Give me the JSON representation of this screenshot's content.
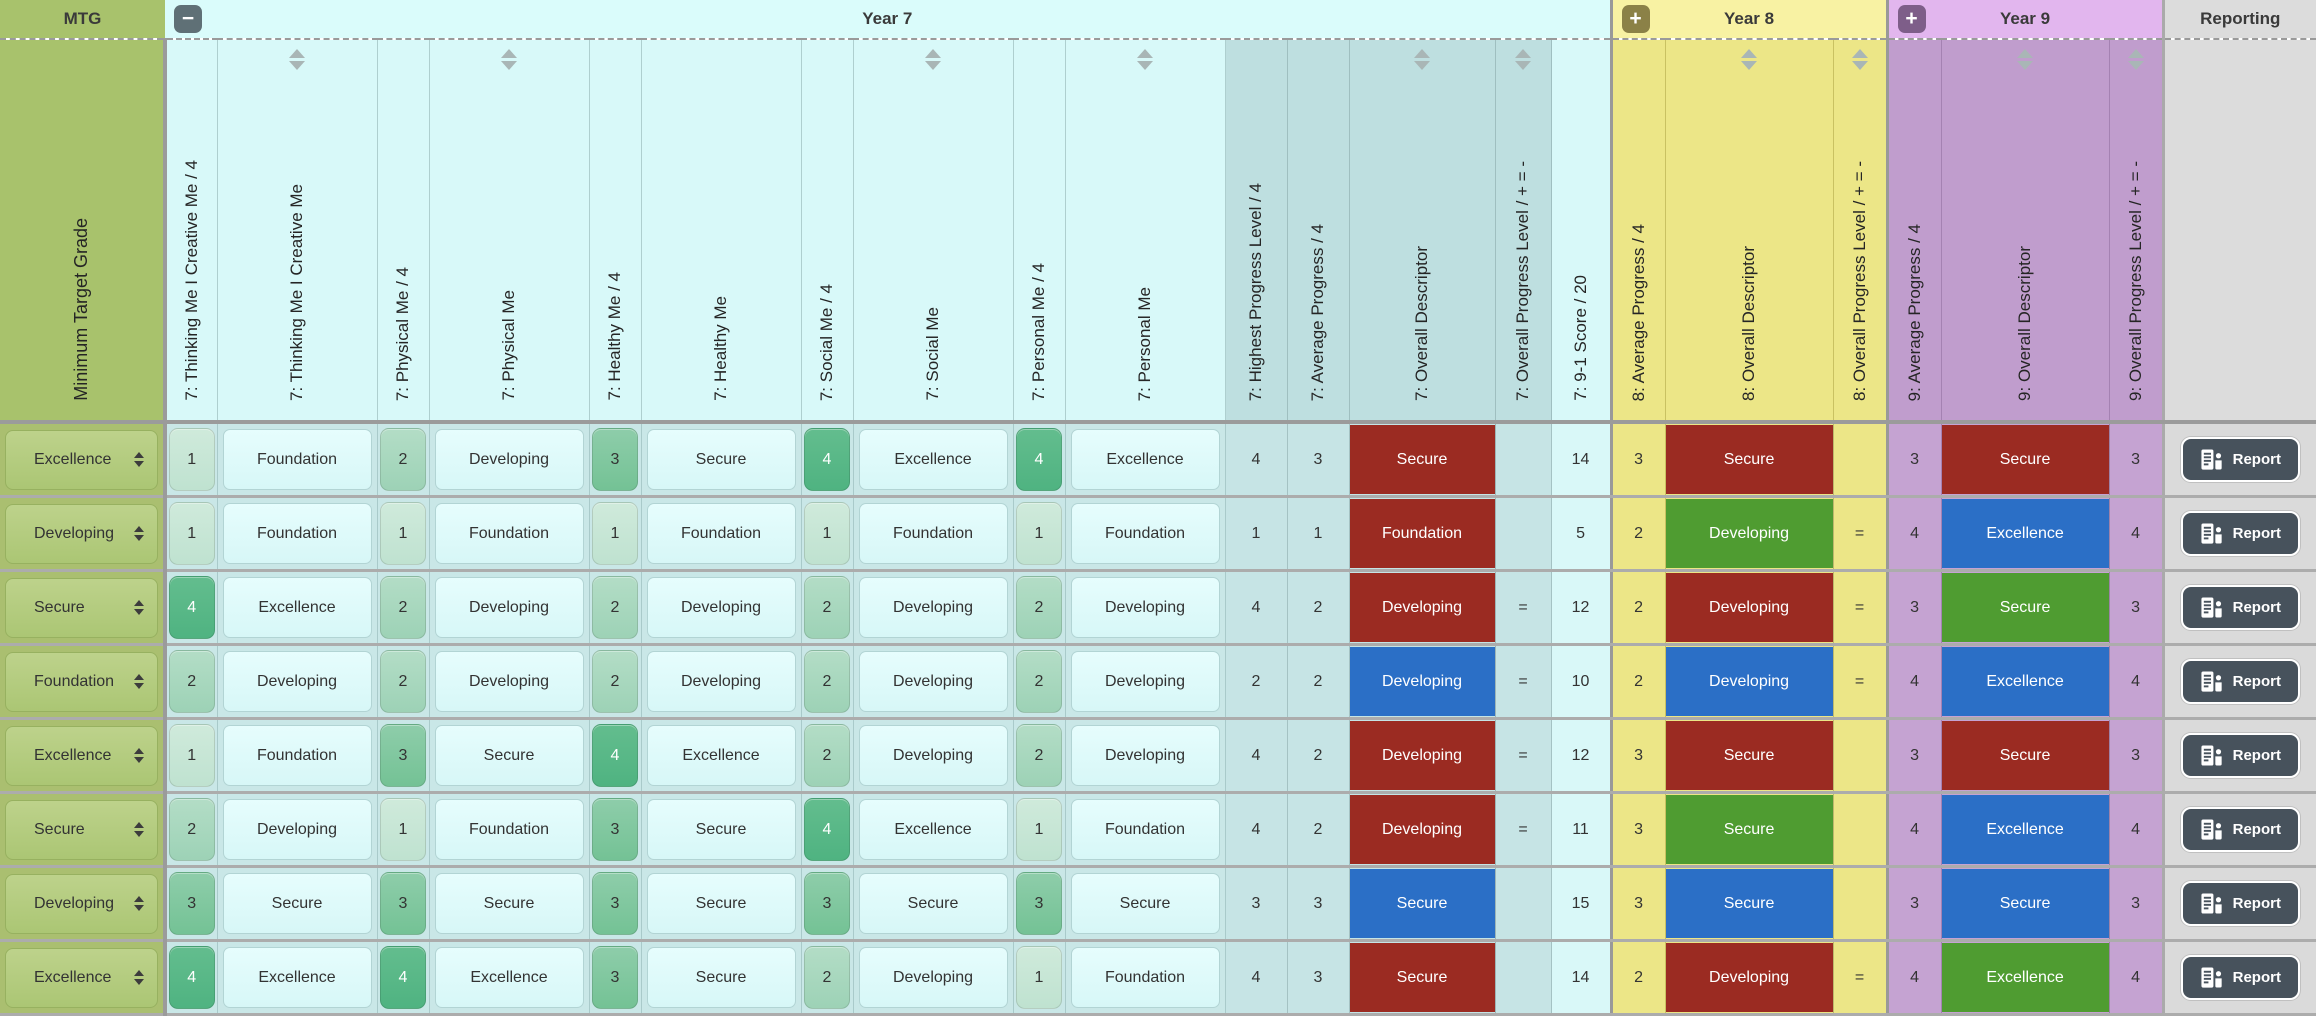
{
  "header": {
    "mtg_label": "MTG",
    "mtg_column_label": "Minimum Target Grade",
    "groups": [
      {
        "label": "Year 7",
        "toggle": "collapse"
      },
      {
        "label": "Year 8",
        "toggle": "expand"
      },
      {
        "label": "Year 9",
        "toggle": "expand"
      },
      {
        "label": "Reporting"
      }
    ],
    "columns": [
      {
        "id": "y7-thinking-score",
        "kind": "chip",
        "label": "7: Thinking Me I Creative Me / 4",
        "sortable": false,
        "path": "y7.thinking.score"
      },
      {
        "id": "y7-thinking-grade",
        "kind": "name",
        "label": "7: Thinking Me I Creative Me",
        "sortable": true,
        "path": "y7.thinking.label"
      },
      {
        "id": "y7-physical-score",
        "kind": "chip",
        "label": "7: Physical Me / 4",
        "sortable": false,
        "path": "y7.physical.score"
      },
      {
        "id": "y7-physical-grade",
        "kind": "name",
        "label": "7: Physical Me",
        "sortable": true,
        "path": "y7.physical.label"
      },
      {
        "id": "y7-healthy-score",
        "kind": "chip",
        "label": "7: Healthy Me / 4",
        "sortable": false,
        "path": "y7.healthy.score"
      },
      {
        "id": "y7-healthy-grade",
        "kind": "name",
        "label": "7: Healthy Me",
        "sortable": false,
        "path": "y7.healthy.label"
      },
      {
        "id": "y7-social-score",
        "kind": "chip",
        "label": "7: Social Me / 4",
        "sortable": false,
        "path": "y7.social.score"
      },
      {
        "id": "y7-social-grade",
        "kind": "name",
        "label": "7: Social Me",
        "sortable": true,
        "path": "y7.social.label"
      },
      {
        "id": "y7-personal-score",
        "kind": "chip",
        "label": "7: Personal Me / 4",
        "sortable": false,
        "path": "y7.personal.score"
      },
      {
        "id": "y7-personal-grade",
        "kind": "name",
        "label": "7: Personal Me",
        "sortable": true,
        "path": "y7.personal.label"
      },
      {
        "id": "y7-highest",
        "kind": "num7",
        "label": "7: Highest Progress Level / 4",
        "sortable": false,
        "path": "y7.highest"
      },
      {
        "id": "y7-average",
        "kind": "num7",
        "label": "7: Average Progress / 4",
        "sortable": false,
        "path": "y7.average"
      },
      {
        "id": "y7-descriptor",
        "kind": "desc7",
        "label": "7: Overall Descriptor",
        "sortable": true,
        "path": "y7.descriptor"
      },
      {
        "id": "y7-opl",
        "kind": "opl7",
        "label": "7: Overall Progress Level / + = -",
        "sortable": true,
        "path": "y7.progress_level"
      },
      {
        "id": "y7-score",
        "kind": "score7",
        "label": "7: 9-1 Score / 20",
        "sortable": false,
        "path": "y7.score_9_1"
      },
      {
        "id": "y8-average",
        "kind": "num8",
        "label": "8: Average Progress / 4",
        "sortable": false,
        "path": "y8.average"
      },
      {
        "id": "y8-descriptor",
        "kind": "desc8",
        "label": "8: Overall Descriptor",
        "sortable": true,
        "path": "y8.descriptor"
      },
      {
        "id": "y8-opl",
        "kind": "opl8",
        "label": "8: Overall Progress Level / + = -",
        "sortable": true,
        "path": "y8.progress_level"
      },
      {
        "id": "y9-average",
        "kind": "num9",
        "label": "9: Average Progress / 4",
        "sortable": false,
        "path": "y9.average"
      },
      {
        "id": "y9-descriptor",
        "kind": "desc9",
        "label": "9: Overall Descriptor",
        "sortable": true,
        "path": "y9.descriptor"
      },
      {
        "id": "y9-opl",
        "kind": "opl9",
        "label": "9: Overall Progress Level / + = -",
        "sortable": true,
        "path": "y9.progress_level"
      }
    ]
  },
  "report": {
    "label": "Report"
  },
  "colors": {
    "descriptor": {
      "maroon": "#9b2b22",
      "green": "#4f9c31",
      "blue": "#2b6fc6"
    },
    "chip_levels": {
      "1": "linear-gradient(180deg,#cfeadb,#bfe2d0)",
      "2": "linear-gradient(180deg,#b3ddc6,#9dd2b6)",
      "3": "linear-gradient(180deg,#8ecdaa,#74c295)",
      "4": "linear-gradient(180deg,#63bd8e,#4fb381)"
    },
    "year7_band": "#dafcfb",
    "year8_band": "#f8f2a3",
    "year9_band": "#e2b6ee",
    "mtg_green": "#a8c26c",
    "report_button": "#47525c"
  },
  "rows": [
    {
      "mtg": "Excellence",
      "y7": {
        "thinking": {
          "score": 1,
          "label": "Foundation"
        },
        "physical": {
          "score": 2,
          "label": "Developing"
        },
        "healthy": {
          "score": 3,
          "label": "Secure"
        },
        "social": {
          "score": 4,
          "label": "Excellence"
        },
        "personal": {
          "score": 4,
          "label": "Excellence"
        },
        "highest": 4,
        "average": 3,
        "descriptor": {
          "label": "Secure",
          "color": "maroon"
        },
        "progress_level": "",
        "score_9_1": 14
      },
      "y8": {
        "average": 3,
        "descriptor": {
          "label": "Secure",
          "color": "maroon"
        },
        "progress_level": ""
      },
      "y9": {
        "average": 3,
        "descriptor": {
          "label": "Secure",
          "color": "maroon"
        },
        "progress_level": "3"
      }
    },
    {
      "mtg": "Developing",
      "y7": {
        "thinking": {
          "score": 1,
          "label": "Foundation"
        },
        "physical": {
          "score": 1,
          "label": "Foundation"
        },
        "healthy": {
          "score": 1,
          "label": "Foundation"
        },
        "social": {
          "score": 1,
          "label": "Foundation"
        },
        "personal": {
          "score": 1,
          "label": "Foundation"
        },
        "highest": 1,
        "average": 1,
        "descriptor": {
          "label": "Foundation",
          "color": "maroon"
        },
        "progress_level": "",
        "score_9_1": 5
      },
      "y8": {
        "average": 2,
        "descriptor": {
          "label": "Developing",
          "color": "green"
        },
        "progress_level": "="
      },
      "y9": {
        "average": 4,
        "descriptor": {
          "label": "Excellence",
          "color": "blue"
        },
        "progress_level": "4"
      }
    },
    {
      "mtg": "Secure",
      "y7": {
        "thinking": {
          "score": 4,
          "label": "Excellence"
        },
        "physical": {
          "score": 2,
          "label": "Developing"
        },
        "healthy": {
          "score": 2,
          "label": "Developing"
        },
        "social": {
          "score": 2,
          "label": "Developing"
        },
        "personal": {
          "score": 2,
          "label": "Developing"
        },
        "highest": 4,
        "average": 2,
        "descriptor": {
          "label": "Developing",
          "color": "maroon"
        },
        "progress_level": "=",
        "score_9_1": 12
      },
      "y8": {
        "average": 2,
        "descriptor": {
          "label": "Developing",
          "color": "maroon"
        },
        "progress_level": "="
      },
      "y9": {
        "average": 3,
        "descriptor": {
          "label": "Secure",
          "color": "green"
        },
        "progress_level": "3"
      }
    },
    {
      "mtg": "Foundation",
      "y7": {
        "thinking": {
          "score": 2,
          "label": "Developing"
        },
        "physical": {
          "score": 2,
          "label": "Developing"
        },
        "healthy": {
          "score": 2,
          "label": "Developing"
        },
        "social": {
          "score": 2,
          "label": "Developing"
        },
        "personal": {
          "score": 2,
          "label": "Developing"
        },
        "highest": 2,
        "average": 2,
        "descriptor": {
          "label": "Developing",
          "color": "blue"
        },
        "progress_level": "=",
        "score_9_1": 10
      },
      "y8": {
        "average": 2,
        "descriptor": {
          "label": "Developing",
          "color": "blue"
        },
        "progress_level": "="
      },
      "y9": {
        "average": 4,
        "descriptor": {
          "label": "Excellence",
          "color": "blue"
        },
        "progress_level": "4"
      }
    },
    {
      "mtg": "Excellence",
      "y7": {
        "thinking": {
          "score": 1,
          "label": "Foundation"
        },
        "physical": {
          "score": 3,
          "label": "Secure"
        },
        "healthy": {
          "score": 4,
          "label": "Excellence"
        },
        "social": {
          "score": 2,
          "label": "Developing"
        },
        "personal": {
          "score": 2,
          "label": "Developing"
        },
        "highest": 4,
        "average": 2,
        "descriptor": {
          "label": "Developing",
          "color": "maroon"
        },
        "progress_level": "=",
        "score_9_1": 12
      },
      "y8": {
        "average": 3,
        "descriptor": {
          "label": "Secure",
          "color": "maroon"
        },
        "progress_level": ""
      },
      "y9": {
        "average": 3,
        "descriptor": {
          "label": "Secure",
          "color": "maroon"
        },
        "progress_level": "3"
      }
    },
    {
      "mtg": "Secure",
      "y7": {
        "thinking": {
          "score": 2,
          "label": "Developing"
        },
        "physical": {
          "score": 1,
          "label": "Foundation"
        },
        "healthy": {
          "score": 3,
          "label": "Secure"
        },
        "social": {
          "score": 4,
          "label": "Excellence"
        },
        "personal": {
          "score": 1,
          "label": "Foundation"
        },
        "highest": 4,
        "average": 2,
        "descriptor": {
          "label": "Developing",
          "color": "maroon"
        },
        "progress_level": "=",
        "score_9_1": 11
      },
      "y8": {
        "average": 3,
        "descriptor": {
          "label": "Secure",
          "color": "green"
        },
        "progress_level": ""
      },
      "y9": {
        "average": 4,
        "descriptor": {
          "label": "Excellence",
          "color": "blue"
        },
        "progress_level": "4"
      }
    },
    {
      "mtg": "Developing",
      "y7": {
        "thinking": {
          "score": 3,
          "label": "Secure"
        },
        "physical": {
          "score": 3,
          "label": "Secure"
        },
        "healthy": {
          "score": 3,
          "label": "Secure"
        },
        "social": {
          "score": 3,
          "label": "Secure"
        },
        "personal": {
          "score": 3,
          "label": "Secure"
        },
        "highest": 3,
        "average": 3,
        "descriptor": {
          "label": "Secure",
          "color": "blue"
        },
        "progress_level": "",
        "score_9_1": 15
      },
      "y8": {
        "average": 3,
        "descriptor": {
          "label": "Secure",
          "color": "blue"
        },
        "progress_level": ""
      },
      "y9": {
        "average": 3,
        "descriptor": {
          "label": "Secure",
          "color": "blue"
        },
        "progress_level": "3"
      }
    },
    {
      "mtg": "Excellence",
      "y7": {
        "thinking": {
          "score": 4,
          "label": "Excellence"
        },
        "physical": {
          "score": 4,
          "label": "Excellence"
        },
        "healthy": {
          "score": 3,
          "label": "Secure"
        },
        "social": {
          "score": 2,
          "label": "Developing"
        },
        "personal": {
          "score": 1,
          "label": "Foundation"
        },
        "highest": 4,
        "average": 3,
        "descriptor": {
          "label": "Secure",
          "color": "maroon"
        },
        "progress_level": "",
        "score_9_1": 14
      },
      "y8": {
        "average": 2,
        "descriptor": {
          "label": "Developing",
          "color": "maroon"
        },
        "progress_level": "="
      },
      "y9": {
        "average": 4,
        "descriptor": {
          "label": "Excellence",
          "color": "green"
        },
        "progress_level": "4"
      }
    }
  ]
}
